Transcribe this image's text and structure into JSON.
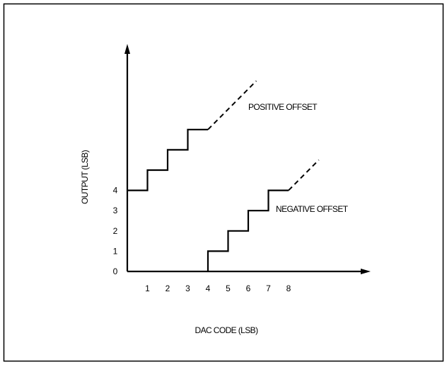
{
  "chart_data": {
    "type": "line",
    "xlabel": "DAC CODE (LSB)",
    "ylabel": "OUTPUT (LSB)",
    "x_ticks": [
      "1",
      "2",
      "3",
      "4",
      "5",
      "6",
      "7",
      "8"
    ],
    "y_ticks": [
      "0",
      "1",
      "2",
      "3",
      "4"
    ],
    "xlim": [
      0,
      12
    ],
    "ylim": [
      0,
      10
    ],
    "annotations": [
      "POSITIVE OFFSET",
      "NEGATIVE OFFSET"
    ],
    "series": [
      {
        "name": "POSITIVE OFFSET",
        "steps": [
          [
            0,
            4
          ],
          [
            1,
            5
          ],
          [
            2,
            6
          ],
          [
            3,
            7
          ],
          [
            4,
            7
          ]
        ],
        "dashed_from": [
          4,
          7
        ],
        "dashed_to": [
          6.4,
          9.4
        ]
      },
      {
        "name": "NEGATIVE OFFSET",
        "steps": [
          [
            4,
            0
          ],
          [
            4,
            1
          ],
          [
            5,
            2
          ],
          [
            6,
            3
          ],
          [
            7,
            4
          ],
          [
            8,
            4
          ]
        ],
        "dashed_from": [
          8,
          4
        ],
        "dashed_to": [
          9.5,
          5.5
        ]
      }
    ]
  }
}
